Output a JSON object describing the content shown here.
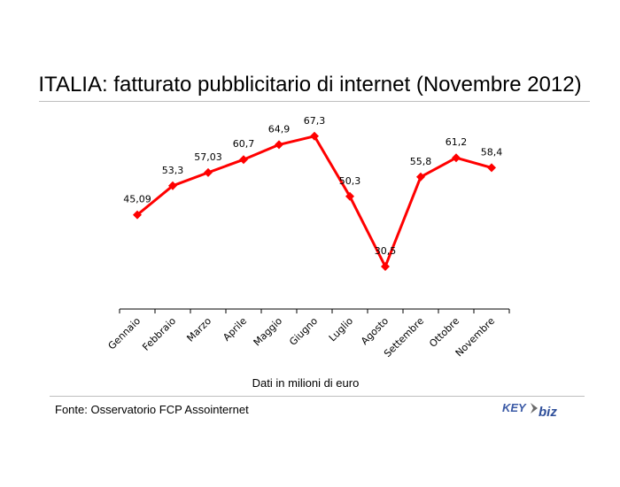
{
  "title": "ITALIA: fatturato pubblicitario di internet (Novembre 2012)",
  "source": "Fonte: Osservatorio FCP Assointernet",
  "logo": {
    "text_key": "KEY",
    "text_biz": "biz",
    "colors": {
      "key": "#3b5aa6",
      "biz": "#2f4f9a",
      "arrow": "#6b6b6b"
    }
  },
  "colors": {
    "line": "#ff0000",
    "axis": "#000000",
    "rule": "#bfbfbf"
  },
  "chart_data": {
    "type": "line",
    "title": "ITALIA: fatturato pubblicitario di internet (Novembre 2012)",
    "xlabel": "Dati in milioni di euro",
    "ylabel": "",
    "categories": [
      "Gennaio",
      "Febbraio",
      "Marzo",
      "Aprile",
      "Maggio",
      "Giugno",
      "Luglio",
      "Agosto",
      "Settembre",
      "Ottobre",
      "Novembre"
    ],
    "values": [
      45.09,
      53.3,
      57.03,
      60.7,
      64.9,
      67.3,
      50.3,
      30.5,
      55.8,
      61.2,
      58.4
    ],
    "data_labels": [
      "45,09",
      "53,3",
      "57,03",
      "60,7",
      "64,9",
      "67,3",
      "50,3",
      "30,5",
      "55,8",
      "61,2",
      "58,4"
    ],
    "marker": "diamond",
    "grid": false,
    "legend": "none"
  }
}
